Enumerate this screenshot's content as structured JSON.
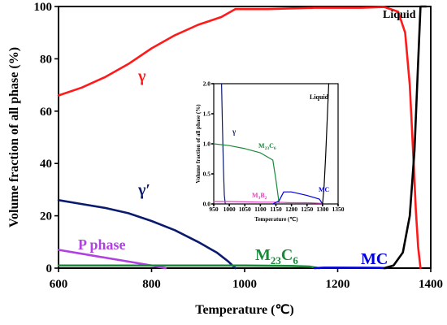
{
  "chart_data": [
    {
      "type": "line",
      "xlabel": "Temperature (℃)",
      "ylabel": "Volume fraction of all phase (%)",
      "xlim": [
        600,
        1400
      ],
      "ylim": [
        0,
        100
      ],
      "x_ticks": [
        "600",
        "800",
        "1000",
        "1200",
        "1400"
      ],
      "y_ticks": [
        "0",
        "20",
        "40",
        "60",
        "80",
        "100"
      ],
      "grid": false,
      "series": [
        {
          "name": "γ",
          "color": "#ff1a1a",
          "x": [
            600,
            650,
            700,
            750,
            800,
            850,
            900,
            950,
            980,
            1050,
            1150,
            1250,
            1300,
            1330,
            1345,
            1355,
            1362,
            1368,
            1373,
            1378
          ],
          "y": [
            66,
            69,
            73,
            78,
            84,
            89,
            93,
            96,
            99,
            99,
            99.5,
            99.5,
            99.8,
            98,
            90,
            70,
            45,
            22,
            8,
            0
          ]
        },
        {
          "name": "γ′",
          "color": "#0a1a6e",
          "x": [
            600,
            650,
            700,
            750,
            800,
            850,
            900,
            940,
            965,
            980
          ],
          "y": [
            26,
            24.5,
            23,
            21,
            18,
            14.5,
            10,
            6,
            2.5,
            0
          ]
        },
        {
          "name": "P phase",
          "color": "#b040e0",
          "x": [
            600,
            650,
            700,
            750,
            800,
            830
          ],
          "y": [
            7,
            5.5,
            4,
            2.5,
            1,
            0
          ]
        },
        {
          "name": "M₂₃C₆",
          "color": "#1a8a3a",
          "x": [
            600,
            800,
            1000,
            1100,
            1140,
            1160
          ],
          "y": [
            1,
            1,
            1,
            0.85,
            0.6,
            0
          ]
        },
        {
          "name": "MC",
          "color": "#0000dd",
          "x": [
            1150,
            1170,
            1200,
            1250,
            1290,
            1305
          ],
          "y": [
            0,
            0.2,
            0.2,
            0.15,
            0.08,
            0
          ]
        },
        {
          "name": "Liquid",
          "color": "#000000",
          "x": [
            1300,
            1320,
            1340,
            1355,
            1365,
            1372,
            1378,
            1390
          ],
          "y": [
            0,
            1,
            6,
            20,
            45,
            75,
            100,
            100
          ]
        }
      ]
    },
    {
      "type": "line",
      "inset": true,
      "xlabel": "Temperature (℃)",
      "ylabel": "Volume fraction of all phase (%)",
      "xlim": [
        950,
        1350
      ],
      "ylim": [
        0,
        2
      ],
      "x_ticks": [
        "950",
        "1000",
        "1050",
        "1100",
        "1150",
        "1200",
        "1250",
        "1300",
        "1350"
      ],
      "y_ticks": [
        "0.0",
        "0.5",
        "1.0",
        "1.5",
        "2.0"
      ],
      "series": [
        {
          "name": "γ′",
          "color": "#0a1a6e",
          "x": [
            975,
            978,
            981,
            984,
            987
          ],
          "y": [
            2.0,
            1.3,
            0.6,
            0.15,
            0
          ]
        },
        {
          "name": "M₂₃C₆",
          "color": "#1a8a3a",
          "x": [
            950,
            1000,
            1050,
            1100,
            1140,
            1150,
            1160
          ],
          "y": [
            1.0,
            0.97,
            0.92,
            0.85,
            0.73,
            0.4,
            0.02
          ]
        },
        {
          "name": "M₃B₂",
          "color": "#e040c0",
          "x": [
            950,
            1000,
            1100,
            1150,
            1200,
            1250,
            1300
          ],
          "y": [
            0.04,
            0.04,
            0.03,
            0.03,
            0.02,
            0.02,
            0.01
          ]
        },
        {
          "name": "MC",
          "color": "#0000dd",
          "x": [
            1140,
            1160,
            1175,
            1200,
            1250,
            1290,
            1300
          ],
          "y": [
            0,
            0.05,
            0.2,
            0.2,
            0.14,
            0.08,
            0
          ]
        },
        {
          "name": "Liquid",
          "color": "#000000",
          "x": [
            1300,
            1305,
            1310,
            1315,
            1320
          ],
          "y": [
            0,
            0.3,
            0.8,
            1.4,
            2.0
          ]
        }
      ]
    }
  ],
  "labels": {
    "gamma": "γ",
    "gamma_prime": "γ′",
    "p_phase": "P phase",
    "m23c6_main": "M",
    "m23c6_main_sub": "23",
    "m23c6_main_c": "C",
    "m23c6_main_sub2": "6",
    "mc": "MC",
    "liquid": "Liquid",
    "inset_gamma": "γ",
    "inset_m23c6": "M",
    "inset_m23c6_sub": "23",
    "inset_m23c6_c": "C",
    "inset_m23c6_sub2": "6",
    "inset_m3b2": "M",
    "inset_m3b2_sub": "3",
    "inset_m3b2_b": "B",
    "inset_m3b2_sub2": "2",
    "inset_mc": "MC",
    "inset_liquid": "Liquid"
  }
}
